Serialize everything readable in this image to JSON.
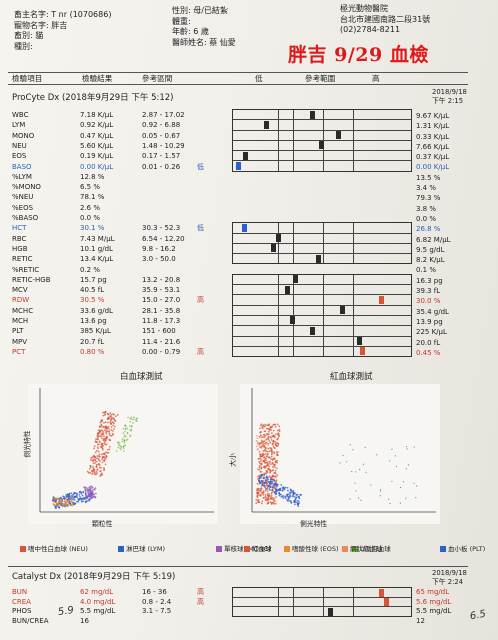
{
  "header": {
    "owner": "畜主名字: T nr (1070686)",
    "pet_name": "寵物名字: 胖吉",
    "species": "畜別: 貓",
    "breed": "種別:",
    "sex": "性別: 母/已結紮",
    "weight": "體重:",
    "age": "年齡: 6 歲",
    "doctor": "醫師姓名: 蔡 仙愛",
    "clinic_name": "極光動物醫院",
    "clinic_address": "台北市建國南路二段31號",
    "clinic_phone": "(02)2784-8211",
    "handwritten_title": "胖吉 9/29 血檢"
  },
  "columns": {
    "item": "檢驗項目",
    "result": "檢驗結果",
    "ref": "參考區間",
    "low": "低",
    "range": "參考範圍",
    "high": "高"
  },
  "procyte": {
    "title": "ProCyte Dx (2018年9月29日 下午 5:12)",
    "prev_date": "2018/9/18",
    "prev_time": "下午 2:15",
    "rows": [
      {
        "name": "WBC",
        "value": "7.18 K/μL",
        "ref": "2.87 - 17.02",
        "flag": "",
        "prev": "9.67 K/μL",
        "color": ""
      },
      {
        "name": "LYM",
        "value": "0.92 K/μL",
        "ref": "0.92 - 6.88",
        "flag": "",
        "prev": "1.31 K/μL",
        "color": ""
      },
      {
        "name": "MONO",
        "value": "0.47 K/μL",
        "ref": "0.05 - 0.67",
        "flag": "",
        "prev": "0.33 K/μL",
        "color": ""
      },
      {
        "name": "NEU",
        "value": "5.60 K/μL",
        "ref": "1.48 - 10.29",
        "flag": "",
        "prev": "7.66 K/μL",
        "color": ""
      },
      {
        "name": "EOS",
        "value": "0.19 K/μL",
        "ref": "0.17 - 1.57",
        "flag": "",
        "prev": "0.37 K/μL",
        "color": ""
      },
      {
        "name": "BASO",
        "value": "0.00 K/μL",
        "ref": "0.01 - 0.26",
        "flag": "低",
        "prev": "0.00 K/μL",
        "color": "blue"
      },
      {
        "name": "%LYM",
        "value": "12.8 %",
        "ref": "",
        "flag": "",
        "prev": "13.5 %",
        "color": ""
      },
      {
        "name": "%MONO",
        "value": "6.5 %",
        "ref": "",
        "flag": "",
        "prev": "3.4 %",
        "color": ""
      },
      {
        "name": "%NEU",
        "value": "78.1 %",
        "ref": "",
        "flag": "",
        "prev": "79.3 %",
        "color": ""
      },
      {
        "name": "%EOS",
        "value": "2.6 %",
        "ref": "",
        "flag": "",
        "prev": "3.8 %",
        "color": ""
      },
      {
        "name": "%BASO",
        "value": "0.0 %",
        "ref": "",
        "flag": "",
        "prev": "0.0 %",
        "color": ""
      },
      {
        "name": "HCT",
        "value": "30.1 %",
        "ref": "30.3 - 52.3",
        "flag": "低",
        "prev": "26.8 %",
        "color": "blue"
      },
      {
        "name": "RBC",
        "value": "7.43 M/μL",
        "ref": "6.54 - 12.20",
        "flag": "",
        "prev": "6.82 M/μL",
        "color": ""
      },
      {
        "name": "HGB",
        "value": "10.1 g/dL",
        "ref": "9.8 - 16.2",
        "flag": "",
        "prev": "9.5 g/dL",
        "color": ""
      },
      {
        "name": "RETIC",
        "value": "13.4 K/μL",
        "ref": "3.0 - 50.0",
        "flag": "",
        "prev": "8.2 K/μL",
        "color": ""
      },
      {
        "name": "%RETIC",
        "value": "0.2 %",
        "ref": "",
        "flag": "",
        "prev": "0.1 %",
        "color": ""
      },
      {
        "name": "RETIC-HGB",
        "value": "15.7 pg",
        "ref": "13.2 - 20.8",
        "flag": "",
        "prev": "16.3 pg",
        "color": ""
      },
      {
        "name": "MCV",
        "value": "40.5 fL",
        "ref": "35.9 - 53.1",
        "flag": "",
        "prev": "39.3 fL",
        "color": ""
      },
      {
        "name": "RDW",
        "value": "30.5 %",
        "ref": "15.0 - 27.0",
        "flag": "高",
        "prev": "30.0 %",
        "color": "red"
      },
      {
        "name": "MCHC",
        "value": "33.6 g/dL",
        "ref": "28.1 - 35.8",
        "flag": "",
        "prev": "35.4 g/dL",
        "color": ""
      },
      {
        "name": "MCH",
        "value": "13.6 pg",
        "ref": "11.8 - 17.3",
        "flag": "",
        "prev": "13.9 pg",
        "color": ""
      },
      {
        "name": "PLT",
        "value": "385 K/μL",
        "ref": "151 - 600",
        "flag": "",
        "prev": "225 K/μL",
        "color": ""
      },
      {
        "name": "MPV",
        "value": "20.7 fL",
        "ref": "11.4 - 21.6",
        "flag": "",
        "prev": "20.0 fL",
        "color": ""
      },
      {
        "name": "PCT",
        "value": "0.80 %",
        "ref": "0.00 - 0.79",
        "flag": "高",
        "prev": "0.45 %",
        "color": "red"
      }
    ],
    "marks": [
      [
        0.45,
        0.62
      ],
      [
        0.18,
        0.35
      ],
      [
        0.6,
        0.45
      ],
      [
        0.5,
        0.62
      ],
      [
        0.06,
        0.12
      ],
      [
        0.02,
        0.02
      ],
      null,
      null,
      null,
      null,
      null,
      [
        0.05,
        0.0
      ],
      [
        0.25,
        0.1
      ],
      [
        0.22,
        0.1
      ],
      [
        0.48,
        0.35
      ],
      null,
      [
        0.35,
        0.5
      ],
      [
        0.3,
        0.22
      ],
      [
        0.85,
        0.85
      ],
      [
        0.62,
        0.78
      ],
      [
        0.33,
        0.38
      ],
      [
        0.45,
        0.3
      ],
      [
        0.72,
        0.62
      ],
      [
        0.74,
        0.74
      ]
    ]
  },
  "wbc_plot": {
    "title": "白血球測試",
    "xlabel": "顆粒性",
    "ylabel": "側光特性",
    "legend": [
      "嗜中性白血球 (NEU)",
      "淋巴球 (LYM)",
      "單核球 (MONO)",
      "嗜酸性球 (EOS)",
      "U試白血球"
    ],
    "colors": [
      "#d9553a",
      "#2f5fc9",
      "#9b59b6",
      "#e88a2e",
      "#7ab648"
    ]
  },
  "rbc_plot": {
    "title": "紅血球測試",
    "xlabel": "側光特性",
    "ylabel": "大小",
    "legend": [
      "紅血球",
      "網狀紅血球",
      "血小板 (PLT)",
      "紅血球碎片",
      "白血球"
    ],
    "colors": [
      "#d9553a",
      "#e88a5a",
      "#2f5fc9",
      "#9b59b6",
      "#2f5fc9"
    ]
  },
  "catalyst": {
    "title": "Catalyst Dx (2018年9月29日 下午 5:19)",
    "prev_date": "2018/9/18",
    "prev_time": "下午 2:24",
    "rows": [
      {
        "name": "BUN",
        "value": "62 mg/dL",
        "ref": "16 - 36",
        "flag": "高",
        "prev": "65 mg/dL",
        "color": "red"
      },
      {
        "name": "CREA",
        "value": "4.0 mg/dL",
        "ref": "0.8 - 2.4",
        "flag": "高",
        "prev": "5.6 mg/dL",
        "color": "red"
      },
      {
        "name": "PHOS",
        "value": "5.5 mg/dL",
        "ref": "3.1 - 7.5",
        "flag": "",
        "prev": "5.5 mg/dL",
        "color": ""
      },
      {
        "name": "BUN/CREA",
        "value": "16",
        "ref": "",
        "flag": "",
        "prev": "12",
        "color": ""
      }
    ],
    "marks": [
      [
        0.85,
        0.9
      ],
      [
        0.88,
        0.94
      ],
      [
        0.55,
        0.55
      ],
      null
    ]
  },
  "handwritten_notes": [
    "5.9",
    "6.5"
  ]
}
